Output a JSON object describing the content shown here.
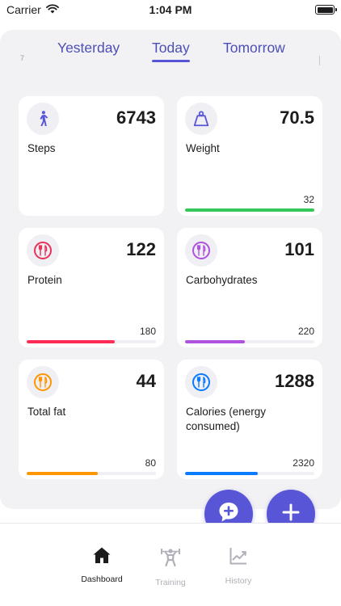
{
  "status_bar": {
    "carrier": "Carrier",
    "time": "1:04 PM"
  },
  "day_tabs": {
    "left_marker": "7",
    "items": [
      {
        "label": "Yesterday",
        "active": false
      },
      {
        "label": "Today",
        "active": true
      },
      {
        "label": "Tomorrow",
        "active": false
      }
    ]
  },
  "cards": [
    {
      "label": "Steps",
      "value": "6743",
      "icon": "walking-icon",
      "icon_color": "#5856d6"
    },
    {
      "label": "Weight",
      "value": "70.5",
      "target": "32",
      "progress": 1.0,
      "icon": "weight-scale-icon",
      "icon_color": "#5856d6",
      "bar_color": "#34c759"
    },
    {
      "label": "Protein",
      "value": "122",
      "target": "180",
      "progress": 0.68,
      "icon": "fork-knife-icon",
      "icon_color": "#e73358",
      "bar_color": "#ff2d55"
    },
    {
      "label": "Carbohydrates",
      "value": "101",
      "target": "220",
      "progress": 0.46,
      "icon": "fork-knife-icon",
      "icon_color": "#af52de",
      "bar_color": "#af52de"
    },
    {
      "label": "Total fat",
      "value": "44",
      "target": "80",
      "progress": 0.55,
      "icon": "fork-knife-icon",
      "icon_color": "#ff9500",
      "bar_color": "#ff9500"
    },
    {
      "label": "Calories (energy consumed)",
      "value": "1288",
      "target": "2320",
      "progress": 0.56,
      "icon": "fork-knife-icon",
      "icon_color": "#0a7aff",
      "bar_color": "#0a7aff"
    }
  ],
  "fab": {
    "chat_icon": "chat-add-icon",
    "add_icon": "plus-icon",
    "color": "#5856d6"
  },
  "tab_bar": {
    "items": [
      {
        "label": "Dashboard",
        "icon": "home-icon",
        "active": true
      },
      {
        "label": "Training",
        "icon": "weightlifter-icon",
        "active": false
      },
      {
        "label": "History",
        "icon": "chart-line-icon",
        "active": false
      }
    ]
  }
}
